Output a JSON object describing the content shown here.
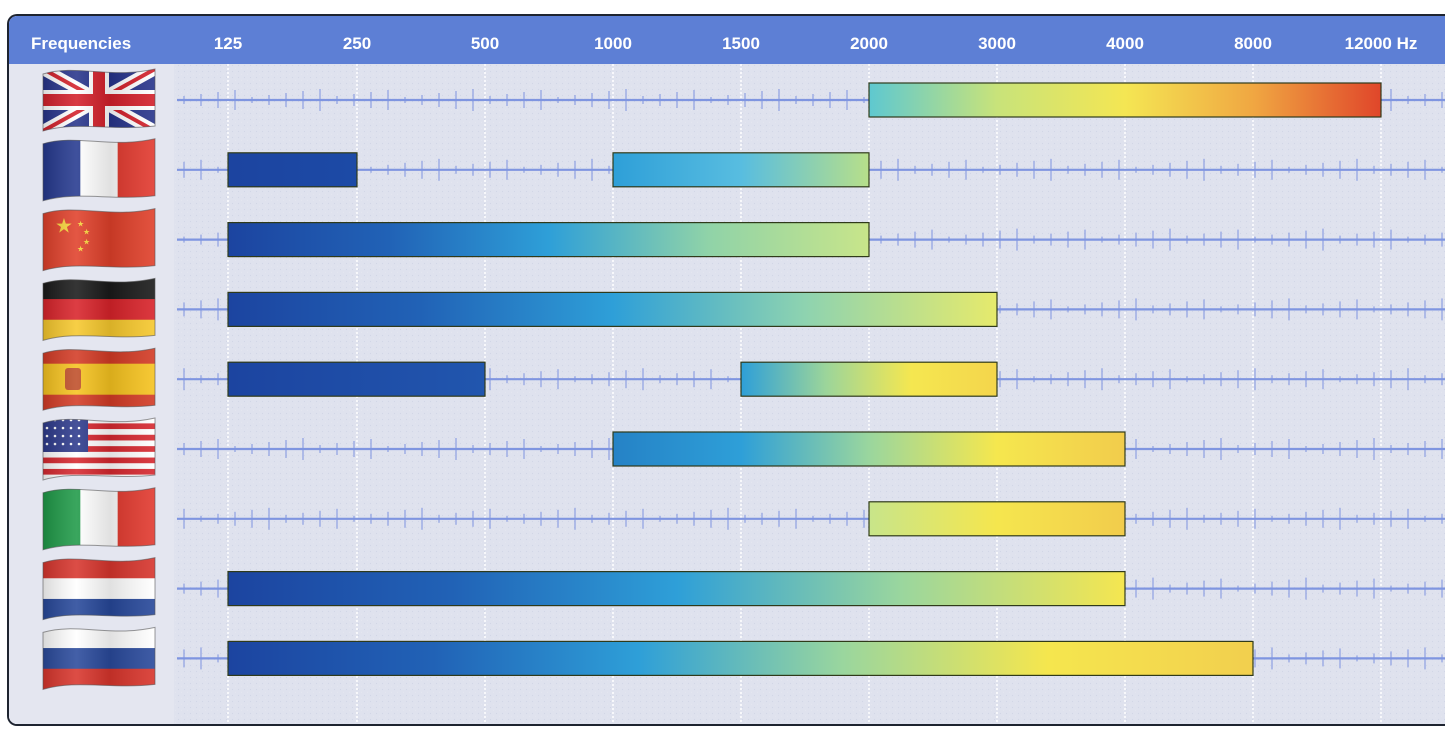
{
  "chart_data": {
    "type": "bar",
    "title": "",
    "header_label": "Frequencies",
    "x_ticks": [
      "125",
      "250",
      "500",
      "1000",
      "1500",
      "2000",
      "3000",
      "4000",
      "8000",
      "12000 Hz"
    ],
    "rows": [
      {
        "flag": "united-kingdom",
        "ranges": [
          {
            "from": "2000",
            "to": "12000",
            "colors": [
              "#5ec8d0",
              "#c8e37a",
              "#f4e653",
              "#f0a742",
              "#e0462a"
            ]
          }
        ]
      },
      {
        "flag": "france",
        "ranges": [
          {
            "from": "125",
            "to": "250",
            "colors": [
              "#1c44a0",
              "#1c4aa6"
            ]
          },
          {
            "from": "1000",
            "to": "2000",
            "colors": [
              "#2e9fd8",
              "#58bde0",
              "#b7df8a"
            ]
          }
        ]
      },
      {
        "flag": "china",
        "ranges": [
          {
            "from": "125",
            "to": "2000",
            "colors": [
              "#1c44a0",
              "#2162b6",
              "#2e9fd8",
              "#90d3a8",
              "#c8e58a"
            ]
          }
        ]
      },
      {
        "flag": "germany",
        "ranges": [
          {
            "from": "125",
            "to": "3000",
            "colors": [
              "#1c44a0",
              "#2162b6",
              "#2e9fd8",
              "#8ed3b0",
              "#e6ea6c"
            ]
          }
        ]
      },
      {
        "flag": "spain",
        "ranges": [
          {
            "from": "125",
            "to": "500",
            "colors": [
              "#1c44a0",
              "#2156ae"
            ]
          },
          {
            "from": "1500",
            "to": "3000",
            "colors": [
              "#2e9fd8",
              "#9cd59a",
              "#f5e750",
              "#f4d54c"
            ]
          }
        ]
      },
      {
        "flag": "united-states",
        "ranges": [
          {
            "from": "1000",
            "to": "4000",
            "colors": [
              "#2582c6",
              "#2e9fd8",
              "#9ad69e",
              "#f5e74e",
              "#f2cc4c"
            ]
          }
        ]
      },
      {
        "flag": "italy",
        "ranges": [
          {
            "from": "2000",
            "to": "4000",
            "colors": [
              "#c8e58a",
              "#f5e64e",
              "#f2cc4c"
            ]
          }
        ]
      },
      {
        "flag": "netherlands",
        "ranges": [
          {
            "from": "125",
            "to": "4000",
            "colors": [
              "#1c44a0",
              "#2162b6",
              "#2e9fd8",
              "#9ad69e",
              "#f5e650"
            ]
          }
        ]
      },
      {
        "flag": "russia",
        "ranges": [
          {
            "from": "125",
            "to": "8000",
            "colors": [
              "#1c44a0",
              "#2162b6",
              "#2e9fd8",
              "#9ad69e",
              "#f5e64e",
              "#f2cf4e"
            ]
          }
        ]
      }
    ],
    "colors": {
      "header_bg": "#5d7fd5",
      "header_text": "#ffffff",
      "plot_bg": "#dfe2ee",
      "grid": "#ffffff",
      "baseline": "#7f95e0",
      "frame": "#1e2430",
      "bar_outline": "#2f3a1a"
    }
  }
}
